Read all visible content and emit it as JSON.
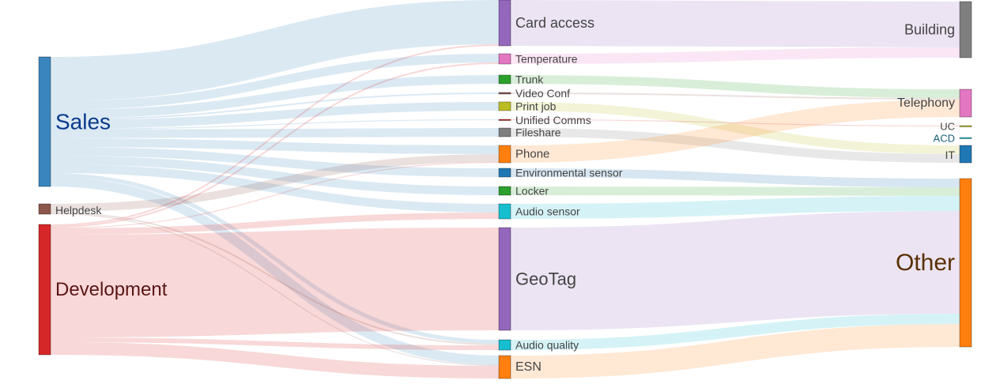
{
  "chart_data": {
    "type": "sankey",
    "nodes": [
      {
        "id": "sales",
        "label": "Sales",
        "color": "#3a85be",
        "label_color": "#0a3a8a"
      },
      {
        "id": "helpdesk",
        "label": "Helpdesk",
        "color": "#8c564b",
        "label_color": "#444444"
      },
      {
        "id": "development",
        "label": "Development",
        "color": "#d62728",
        "label_color": "#5a1515"
      },
      {
        "id": "card_access",
        "label": "Card access",
        "color": "#9467bd",
        "label_color": "#444444"
      },
      {
        "id": "temperature",
        "label": "Temperature",
        "color": "#e377c2",
        "label_color": "#444444"
      },
      {
        "id": "trunk",
        "label": "Trunk",
        "color": "#2ca02c",
        "label_color": "#444444"
      },
      {
        "id": "video_conf",
        "label": "Video Conf",
        "color": "#8c564b",
        "label_color": "#444444"
      },
      {
        "id": "print_job",
        "label": "Print job",
        "color": "#bcbd22",
        "label_color": "#444444"
      },
      {
        "id": "unified_comms",
        "label": "Unified Comms",
        "color": "#d62728",
        "label_color": "#444444"
      },
      {
        "id": "fileshare",
        "label": "Fileshare",
        "color": "#7f7f7f",
        "label_color": "#444444"
      },
      {
        "id": "phone",
        "label": "Phone",
        "color": "#ff7f0e",
        "label_color": "#444444"
      },
      {
        "id": "env_sensor",
        "label": "Environmental sensor",
        "color": "#1f77b4",
        "label_color": "#444444"
      },
      {
        "id": "locker",
        "label": "Locker",
        "color": "#2ca02c",
        "label_color": "#444444"
      },
      {
        "id": "audio_sensor",
        "label": "Audio sensor",
        "color": "#17becf",
        "label_color": "#444444"
      },
      {
        "id": "geotag",
        "label": "GeoTag",
        "color": "#9467bd",
        "label_color": "#444444"
      },
      {
        "id": "audio_quality",
        "label": "Audio quality",
        "color": "#17becf",
        "label_color": "#444444"
      },
      {
        "id": "esn",
        "label": "ESN",
        "color": "#ff7f0e",
        "label_color": "#444444"
      },
      {
        "id": "building",
        "label": "Building",
        "color": "#7f7f7f",
        "label_color": "#444444"
      },
      {
        "id": "telephony",
        "label": "Telephony",
        "color": "#e377c2",
        "label_color": "#444444"
      },
      {
        "id": "uc",
        "label": "UC",
        "color": "#bcbd22",
        "label_color": "#444444"
      },
      {
        "id": "acd",
        "label": "ACD",
        "color": "#17becf",
        "label_color": "#17607a"
      },
      {
        "id": "it",
        "label": "IT",
        "color": "#1f77b4",
        "label_color": "#444444"
      },
      {
        "id": "other",
        "label": "Other",
        "color": "#ff7f0e",
        "label_color": "#5a3000"
      }
    ],
    "links": [
      {
        "source": "sales",
        "target": "card_access",
        "value": 56
      },
      {
        "source": "sales",
        "target": "temperature",
        "value": 11
      },
      {
        "source": "sales",
        "target": "trunk",
        "value": 11
      },
      {
        "source": "sales",
        "target": "video_conf",
        "value": 2
      },
      {
        "source": "sales",
        "target": "print_job",
        "value": 11
      },
      {
        "source": "sales",
        "target": "unified_comms",
        "value": 1
      },
      {
        "source": "sales",
        "target": "fileshare",
        "value": 11
      },
      {
        "source": "sales",
        "target": "phone",
        "value": 11
      },
      {
        "source": "sales",
        "target": "env_sensor",
        "value": 11
      },
      {
        "source": "sales",
        "target": "locker",
        "value": 11
      },
      {
        "source": "sales",
        "target": "audio_sensor",
        "value": 11
      },
      {
        "source": "sales",
        "target": "audio_quality",
        "value": 5
      },
      {
        "source": "sales",
        "target": "esn",
        "value": 12
      },
      {
        "source": "helpdesk",
        "target": "phone",
        "value": 10
      },
      {
        "source": "helpdesk",
        "target": "audio_quality",
        "value": 2
      },
      {
        "source": "helpdesk",
        "target": "esn",
        "value": 1
      },
      {
        "source": "development",
        "target": "card_access",
        "value": 2
      },
      {
        "source": "development",
        "target": "temperature",
        "value": 2
      },
      {
        "source": "development",
        "target": "phone",
        "value": 1
      },
      {
        "source": "development",
        "target": "audio_sensor",
        "value": 8
      },
      {
        "source": "development",
        "target": "geotag",
        "value": 130
      },
      {
        "source": "development",
        "target": "audio_quality",
        "value": 6
      },
      {
        "source": "development",
        "target": "esn",
        "value": 16
      },
      {
        "source": "card_access",
        "target": "building",
        "value": 58
      },
      {
        "source": "temperature",
        "target": "building",
        "value": 13
      },
      {
        "source": "trunk",
        "target": "telephony",
        "value": 11
      },
      {
        "source": "video_conf",
        "target": "telephony",
        "value": 2
      },
      {
        "source": "print_job",
        "target": "it",
        "value": 11
      },
      {
        "source": "unified_comms",
        "target": "uc",
        "value": 1
      },
      {
        "source": "fileshare",
        "target": "it",
        "value": 11
      },
      {
        "source": "phone",
        "target": "telephony",
        "value": 22
      },
      {
        "source": "env_sensor",
        "target": "other",
        "value": 11
      },
      {
        "source": "locker",
        "target": "other",
        "value": 11
      },
      {
        "source": "audio_sensor",
        "target": "other",
        "value": 19
      },
      {
        "source": "geotag",
        "target": "other",
        "value": 130
      },
      {
        "source": "audio_quality",
        "target": "other",
        "value": 13
      },
      {
        "source": "esn",
        "target": "other",
        "value": 29
      }
    ]
  }
}
